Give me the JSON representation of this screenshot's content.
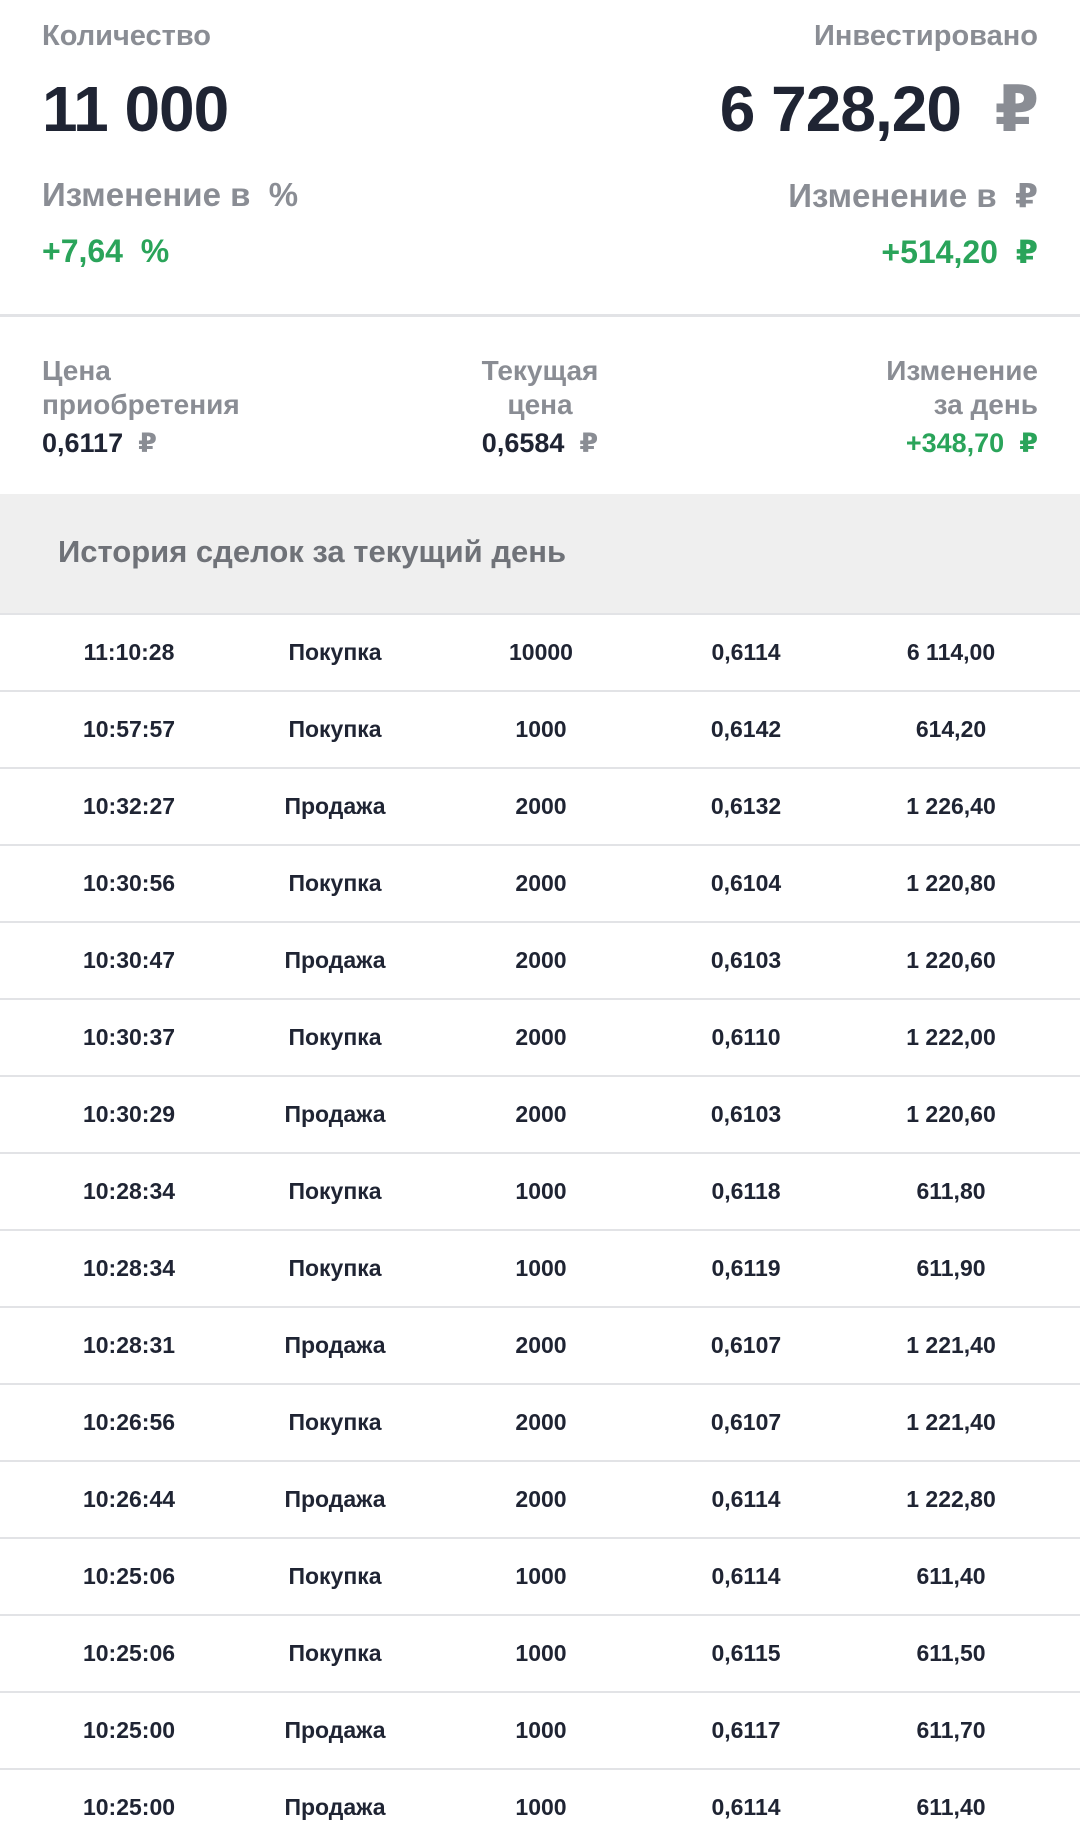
{
  "summary": {
    "quantity": {
      "label": "Количество",
      "value": "11 000"
    },
    "invested": {
      "label": "Инвестировано",
      "value": "6 728,20"
    },
    "change_percent": {
      "label": "Изменение в",
      "unit": "%",
      "value": "+7,64"
    },
    "change_rub": {
      "label": "Изменение в",
      "value": "+514,20"
    },
    "currency": "₽"
  },
  "prices": {
    "purchase": {
      "label": "Цена приобретения",
      "value": "0,6117"
    },
    "current": {
      "label": "Текущая цена",
      "value": "0,6584"
    },
    "day_change": {
      "label": "Изменение за день",
      "value": "+348,70"
    }
  },
  "history": {
    "title": "История сделок за текущий день",
    "rows": [
      [
        "11:10:28",
        "Покупка",
        "10000",
        "0,6114",
        "6 114,00"
      ],
      [
        "10:57:57",
        "Покупка",
        "1000",
        "0,6142",
        "614,20"
      ],
      [
        "10:32:27",
        "Продажа",
        "2000",
        "0,6132",
        "1 226,40"
      ],
      [
        "10:30:56",
        "Покупка",
        "2000",
        "0,6104",
        "1 220,80"
      ],
      [
        "10:30:47",
        "Продажа",
        "2000",
        "0,6103",
        "1 220,60"
      ],
      [
        "10:30:37",
        "Покупка",
        "2000",
        "0,6110",
        "1 222,00"
      ],
      [
        "10:30:29",
        "Продажа",
        "2000",
        "0,6103",
        "1 220,60"
      ],
      [
        "10:28:34",
        "Покупка",
        "1000",
        "0,6118",
        "611,80"
      ],
      [
        "10:28:34",
        "Покупка",
        "1000",
        "0,6119",
        "611,90"
      ],
      [
        "10:28:31",
        "Продажа",
        "2000",
        "0,6107",
        "1 221,40"
      ],
      [
        "10:26:56",
        "Покупка",
        "2000",
        "0,6107",
        "1 221,40"
      ],
      [
        "10:26:44",
        "Продажа",
        "2000",
        "0,6114",
        "1 222,80"
      ],
      [
        "10:25:06",
        "Покупка",
        "1000",
        "0,6114",
        "611,40"
      ],
      [
        "10:25:06",
        "Покупка",
        "1000",
        "0,6115",
        "611,50"
      ],
      [
        "10:25:00",
        "Продажа",
        "1000",
        "0,6117",
        "611,70"
      ],
      [
        "10:25:00",
        "Продажа",
        "1000",
        "0,6114",
        "611,40"
      ]
    ]
  }
}
